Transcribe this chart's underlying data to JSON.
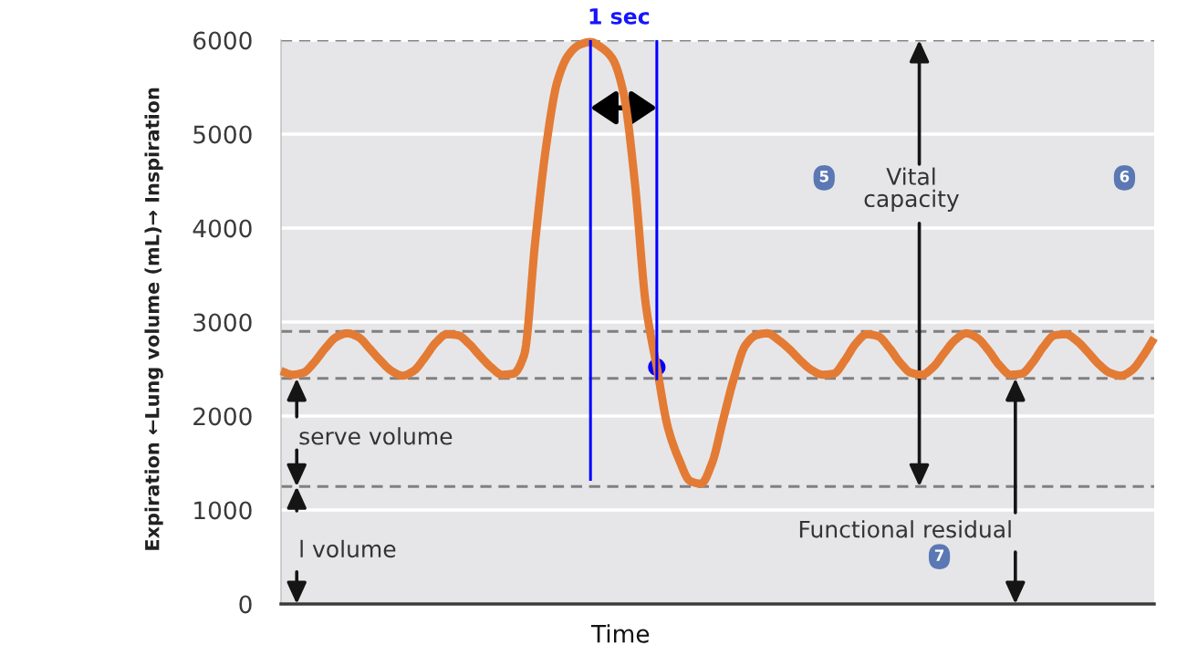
{
  "chart_data": {
    "type": "line",
    "xlabel": "Time",
    "ylabel": "Expiration ←Lung volume (mL)→ Inspiration",
    "categories": [
      null,
      null,
      null,
      null,
      null,
      null,
      null,
      null,
      null,
      null,
      null,
      null,
      null,
      null,
      null,
      null,
      null,
      null,
      null,
      null,
      null,
      null,
      null,
      null,
      null,
      null,
      null,
      null,
      null,
      null,
      null,
      null,
      null,
      null,
      null,
      null,
      null,
      null,
      null,
      null,
      null,
      null,
      null,
      null,
      null,
      null,
      null,
      null,
      null,
      null,
      null,
      null,
      null,
      null,
      null,
      null,
      null,
      null,
      null,
      null,
      null,
      null,
      null,
      null,
      null,
      null,
      null,
      null,
      null,
      null,
      null,
      null,
      null,
      null,
      null,
      null,
      null,
      null,
      null,
      null
    ],
    "ylim": [
      0,
      6000
    ],
    "yticks": [
      0,
      1000,
      2000,
      3000,
      4000,
      5000,
      6000
    ],
    "tick_labels": "y",
    "grid": "y",
    "series": [
      {
        "color": "#e37b35",
        "values": [
          2480,
          2440,
          2460,
          2570,
          2720,
          2840,
          2880,
          2840,
          2720,
          2590,
          2480,
          2430,
          2480,
          2620,
          2780,
          2870,
          2860,
          2770,
          2640,
          2520,
          2440,
          2450,
          2650,
          3860,
          4880,
          5560,
          5840,
          5950,
          5980,
          5920,
          5800,
          5430,
          4500,
          3190,
          2520,
          1880,
          1540,
          1310,
          1280,
          1500,
          1960,
          2410,
          2750,
          2860,
          2880,
          2810,
          2710,
          2590,
          2490,
          2440,
          2450,
          2590,
          2770,
          2870,
          2850,
          2730,
          2570,
          2460,
          2440,
          2520,
          2670,
          2810,
          2880,
          2830,
          2700,
          2540,
          2440,
          2450,
          2570,
          2740,
          2860,
          2870,
          2800,
          2680,
          2550,
          2460,
          2430,
          2490,
          2640,
          2830
        ]
      },
      {
        "type": "bar",
        "color": "#0000ff",
        "values": [
          null,
          null,
          null,
          null,
          null,
          null,
          null,
          null,
          null,
          null,
          null,
          null,
          null,
          null,
          null,
          null,
          null,
          null,
          null,
          null,
          null,
          null,
          null,
          null,
          null,
          null,
          null,
          null,
          4690,
          null,
          null,
          null,
          null,
          null,
          3620,
          null,
          null,
          null,
          null,
          null,
          null,
          null,
          null,
          null,
          null,
          null,
          null,
          null,
          null,
          null,
          null,
          null,
          null,
          null,
          null,
          null,
          null,
          null,
          null,
          null,
          null,
          null,
          null,
          null,
          null,
          null,
          null,
          null,
          null,
          null,
          null,
          null,
          null,
          null,
          null,
          null,
          null,
          null,
          null,
          null
        ],
        "base": [
          null,
          null,
          null,
          null,
          null,
          null,
          null,
          null,
          null,
          null,
          null,
          null,
          null,
          null,
          null,
          null,
          null,
          null,
          null,
          null,
          null,
          null,
          null,
          null,
          null,
          null,
          null,
          null,
          1310,
          null,
          null,
          null,
          null,
          null,
          2380,
          null,
          null,
          null,
          null,
          null,
          null,
          null,
          null,
          null,
          null,
          null,
          null,
          null,
          null,
          null,
          null,
          null,
          null,
          null,
          null,
          null,
          null,
          null,
          null,
          null,
          null,
          null,
          null,
          null,
          null,
          null,
          null,
          null,
          null,
          null,
          null,
          null,
          null,
          null,
          null,
          null,
          null,
          null,
          null,
          null
        ]
      },
      {
        "type": "scatter",
        "color": "#0000ff",
        "marker": "circle",
        "values": [
          null,
          null,
          null,
          null,
          null,
          null,
          null,
          null,
          null,
          null,
          null,
          null,
          null,
          null,
          null,
          null,
          null,
          null,
          null,
          null,
          null,
          null,
          null,
          null,
          null,
          null,
          null,
          null,
          null,
          null,
          null,
          null,
          null,
          null,
          2520,
          null,
          null,
          null,
          null,
          null,
          null,
          null,
          null,
          null,
          null,
          null,
          null,
          null,
          null,
          null,
          null,
          null,
          null,
          null,
          null,
          null,
          null,
          null,
          null,
          null,
          null,
          null,
          null,
          null,
          null,
          null,
          null,
          null,
          null,
          null,
          null,
          null,
          null,
          null,
          null,
          null,
          null,
          null,
          null,
          null
        ]
      }
    ],
    "ref_lines": [
      {
        "axis": "y",
        "value": 6000,
        "color": "#808080",
        "line_style": "dashed"
      },
      {
        "axis": "y",
        "value": 2900,
        "color": "#808080",
        "line_style": "dashed"
      },
      {
        "axis": "y",
        "value": 2400,
        "color": "#808080",
        "line_style": "dashed"
      },
      {
        "axis": "y",
        "value": 1250,
        "color": "#808080",
        "line_style": "dashed"
      }
    ],
    "annotations": [
      "1 sec",
      "Vital\ncapacity",
      "5",
      "6",
      "Functional residual",
      "7",
      "serve volume",
      "l volume"
    ]
  }
}
